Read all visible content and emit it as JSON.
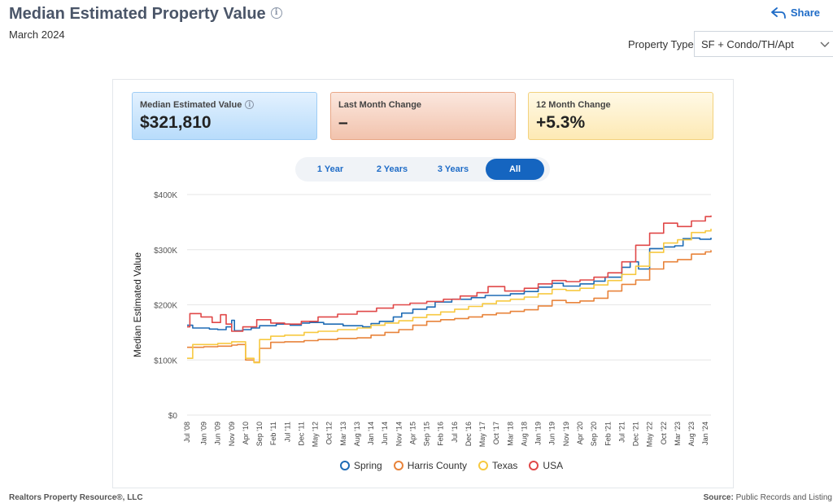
{
  "header": {
    "title": "Median Estimated Property Value",
    "subtitle": "March 2024",
    "share_label": "Share"
  },
  "filters": {
    "property_type_label": "Property Type",
    "property_type_value": "SF + Condo/TH/Apt"
  },
  "stats": [
    {
      "label": "Median Estimated Value",
      "value": "$321,810"
    },
    {
      "label": "Last Month Change",
      "value": "–"
    },
    {
      "label": "12 Month Change",
      "value": "+5.3%"
    }
  ],
  "ranges": {
    "items": [
      "1 Year",
      "2 Years",
      "3 Years",
      "All"
    ],
    "active": "All"
  },
  "footer": {
    "left": "Realtors Property Resource®, LLC",
    "source_label": "Source:",
    "source_value": "Public Records and Listing"
  },
  "colors": {
    "Spring": "#1f6cb5",
    "Harris County": "#e8833a",
    "Texas": "#f7c940",
    "USA": "#e04848",
    "accent": "#1565c0"
  },
  "chart_data": {
    "type": "line",
    "ylabel": "Median Estimated Value",
    "ylim": [
      0,
      400000
    ],
    "yticks": [
      0,
      100000,
      200000,
      300000,
      400000
    ],
    "ytick_labels": [
      "$0",
      "$100K",
      "$200K",
      "$300K",
      "$400K"
    ],
    "xlim": [
      "2008-07",
      "2024-03"
    ],
    "xticks": [
      "2008-07",
      "2009-01",
      "2009-06",
      "2009-11",
      "2010-04",
      "2010-09",
      "2011-02",
      "2011-07",
      "2011-12",
      "2012-05",
      "2012-10",
      "2013-03",
      "2013-08",
      "2014-01",
      "2014-06",
      "2014-11",
      "2015-04",
      "2015-09",
      "2016-02",
      "2016-07",
      "2016-12",
      "2017-05",
      "2017-10",
      "2018-03",
      "2018-08",
      "2019-01",
      "2019-06",
      "2019-11",
      "2020-04",
      "2020-09",
      "2021-02",
      "2021-07",
      "2021-12",
      "2022-05",
      "2022-10",
      "2023-03",
      "2023-08",
      "2024-01"
    ],
    "xtick_labels": [
      "Jul '08",
      "Jan '09",
      "Jun '09",
      "Nov '09",
      "Apr '10",
      "Sep '10",
      "Feb '11",
      "Jul '11",
      "Dec '11",
      "May '12",
      "Oct '12",
      "Mar '13",
      "Aug '13",
      "Jan '14",
      "Jun '14",
      "Nov '14",
      "Apr '15",
      "Sep '15",
      "Feb '16",
      "Jul '16",
      "Dec '16",
      "May '17",
      "Oct '17",
      "Mar '18",
      "Aug '18",
      "Jan '19",
      "Jun '19",
      "Nov '19",
      "Apr '20",
      "Sep '20",
      "Feb '21",
      "Jul '21",
      "Dec '21",
      "May '22",
      "Oct '22",
      "Mar '23",
      "Aug '23",
      "Jan '24"
    ],
    "legend": "bottom",
    "grid": true,
    "series": [
      {
        "name": "Spring",
        "points": [
          [
            "2008-07",
            163000
          ],
          [
            "2008-09",
            158000
          ],
          [
            "2009-03",
            156000
          ],
          [
            "2009-06",
            155000
          ],
          [
            "2009-09",
            160000
          ],
          [
            "2009-11",
            172000
          ],
          [
            "2009-12",
            153000
          ],
          [
            "2010-03",
            155000
          ],
          [
            "2010-06",
            158000
          ],
          [
            "2010-09",
            162000
          ],
          [
            "2011-03",
            165000
          ],
          [
            "2011-08",
            163000
          ],
          [
            "2011-12",
            167000
          ],
          [
            "2012-03",
            168000
          ],
          [
            "2012-08",
            165000
          ],
          [
            "2013-03",
            162000
          ],
          [
            "2013-10",
            160000
          ],
          [
            "2014-01",
            166000
          ],
          [
            "2014-04",
            170000
          ],
          [
            "2014-09",
            178000
          ],
          [
            "2014-12",
            185000
          ],
          [
            "2015-04",
            192000
          ],
          [
            "2015-09",
            196000
          ],
          [
            "2015-12",
            205000
          ],
          [
            "2016-06",
            210000
          ],
          [
            "2017-01",
            213000
          ],
          [
            "2017-06",
            217000
          ],
          [
            "2018-03",
            220000
          ],
          [
            "2018-08",
            224000
          ],
          [
            "2019-01",
            232000
          ],
          [
            "2019-06",
            239000
          ],
          [
            "2019-10",
            234000
          ],
          [
            "2020-04",
            238000
          ],
          [
            "2020-09",
            243000
          ],
          [
            "2021-01",
            250000
          ],
          [
            "2021-07",
            268000
          ],
          [
            "2021-10",
            278000
          ],
          [
            "2022-01",
            265000
          ],
          [
            "2022-05",
            302000
          ],
          [
            "2022-10",
            305000
          ],
          [
            "2023-02",
            307000
          ],
          [
            "2023-05",
            320000
          ],
          [
            "2023-08",
            321000
          ],
          [
            "2023-11",
            319000
          ],
          [
            "2024-03",
            321810
          ]
        ]
      },
      {
        "name": "Harris County",
        "points": [
          [
            "2008-07",
            123000
          ],
          [
            "2009-01",
            124000
          ],
          [
            "2009-06",
            125000
          ],
          [
            "2009-11",
            127000
          ],
          [
            "2010-01",
            128000
          ],
          [
            "2010-04",
            100000
          ],
          [
            "2010-07",
            96000
          ],
          [
            "2010-09",
            121000
          ],
          [
            "2011-01",
            132000
          ],
          [
            "2011-06",
            133000
          ],
          [
            "2012-01",
            135000
          ],
          [
            "2012-06",
            137000
          ],
          [
            "2013-01",
            139000
          ],
          [
            "2013-08",
            140000
          ],
          [
            "2014-01",
            145000
          ],
          [
            "2014-06",
            150000
          ],
          [
            "2014-11",
            155000
          ],
          [
            "2015-04",
            163000
          ],
          [
            "2015-09",
            170000
          ],
          [
            "2016-02",
            173000
          ],
          [
            "2016-07",
            175000
          ],
          [
            "2016-12",
            178000
          ],
          [
            "2017-05",
            182000
          ],
          [
            "2017-10",
            185000
          ],
          [
            "2018-03",
            188000
          ],
          [
            "2018-08",
            191000
          ],
          [
            "2019-01",
            198000
          ],
          [
            "2019-06",
            208000
          ],
          [
            "2019-11",
            204000
          ],
          [
            "2020-04",
            207000
          ],
          [
            "2020-09",
            212000
          ],
          [
            "2021-02",
            225000
          ],
          [
            "2021-07",
            237000
          ],
          [
            "2021-12",
            245000
          ],
          [
            "2022-05",
            265000
          ],
          [
            "2022-10",
            278000
          ],
          [
            "2023-03",
            282000
          ],
          [
            "2023-08",
            292000
          ],
          [
            "2024-01",
            296000
          ],
          [
            "2024-03",
            299000
          ]
        ]
      },
      {
        "name": "Texas",
        "points": [
          [
            "2008-07",
            103000
          ],
          [
            "2008-09",
            128000
          ],
          [
            "2009-01",
            128000
          ],
          [
            "2009-06",
            130000
          ],
          [
            "2009-11",
            133000
          ],
          [
            "2010-02",
            133000
          ],
          [
            "2010-04",
            103000
          ],
          [
            "2010-07",
            95000
          ],
          [
            "2010-09",
            137000
          ],
          [
            "2011-01",
            143000
          ],
          [
            "2011-06",
            145000
          ],
          [
            "2012-01",
            150000
          ],
          [
            "2012-06",
            152000
          ],
          [
            "2013-01",
            155000
          ],
          [
            "2013-08",
            158000
          ],
          [
            "2014-01",
            163000
          ],
          [
            "2014-06",
            167000
          ],
          [
            "2014-11",
            171000
          ],
          [
            "2015-04",
            177000
          ],
          [
            "2015-09",
            182000
          ],
          [
            "2016-02",
            187000
          ],
          [
            "2016-07",
            192000
          ],
          [
            "2016-12",
            197000
          ],
          [
            "2017-05",
            202000
          ],
          [
            "2017-10",
            207000
          ],
          [
            "2018-03",
            210000
          ],
          [
            "2018-08",
            214000
          ],
          [
            "2019-01",
            220000
          ],
          [
            "2019-06",
            228000
          ],
          [
            "2019-11",
            226000
          ],
          [
            "2020-04",
            230000
          ],
          [
            "2020-09",
            236000
          ],
          [
            "2021-02",
            244000
          ],
          [
            "2021-07",
            255000
          ],
          [
            "2021-12",
            270000
          ],
          [
            "2022-05",
            295000
          ],
          [
            "2022-10",
            312000
          ],
          [
            "2023-03",
            318000
          ],
          [
            "2023-08",
            331000
          ],
          [
            "2024-01",
            334000
          ],
          [
            "2024-03",
            338000
          ]
        ]
      },
      {
        "name": "USA",
        "points": [
          [
            "2008-07",
            160000
          ],
          [
            "2008-08",
            184000
          ],
          [
            "2008-12",
            178000
          ],
          [
            "2009-04",
            168000
          ],
          [
            "2009-07",
            182000
          ],
          [
            "2009-09",
            165000
          ],
          [
            "2009-11",
            152000
          ],
          [
            "2010-03",
            160000
          ],
          [
            "2010-08",
            173000
          ],
          [
            "2011-01",
            167000
          ],
          [
            "2011-06",
            165000
          ],
          [
            "2011-12",
            170000
          ],
          [
            "2012-06",
            178000
          ],
          [
            "2013-01",
            183000
          ],
          [
            "2013-08",
            188000
          ],
          [
            "2014-03",
            194000
          ],
          [
            "2014-09",
            200000
          ],
          [
            "2015-03",
            203000
          ],
          [
            "2015-09",
            206000
          ],
          [
            "2016-03",
            210000
          ],
          [
            "2016-09",
            216000
          ],
          [
            "2017-03",
            222000
          ],
          [
            "2017-07",
            233000
          ],
          [
            "2018-01",
            225000
          ],
          [
            "2018-08",
            230000
          ],
          [
            "2019-01",
            238000
          ],
          [
            "2019-06",
            244000
          ],
          [
            "2019-11",
            242000
          ],
          [
            "2020-04",
            245000
          ],
          [
            "2020-09",
            250000
          ],
          [
            "2021-02",
            258000
          ],
          [
            "2021-07",
            278000
          ],
          [
            "2021-12",
            308000
          ],
          [
            "2022-05",
            330000
          ],
          [
            "2022-10",
            348000
          ],
          [
            "2023-03",
            342000
          ],
          [
            "2023-08",
            352000
          ],
          [
            "2024-01",
            360000
          ],
          [
            "2024-03",
            362000
          ]
        ]
      }
    ]
  }
}
